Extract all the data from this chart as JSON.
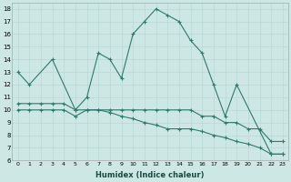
{
  "xlabel": "Humidex (Indice chaleur)",
  "bg_color": "#cde8e4",
  "grid_color": "#b8d8d4",
  "line_color": "#2d7a6e",
  "series1_x": [
    0,
    1,
    3,
    5,
    6,
    7,
    8,
    9,
    10,
    11,
    12,
    13,
    14,
    15,
    16,
    17,
    18,
    19,
    22,
    23
  ],
  "series1_y": [
    13,
    12,
    14,
    10,
    11,
    14.5,
    14,
    12.5,
    16,
    17,
    18,
    17.5,
    17,
    15.5,
    14.5,
    12,
    9.5,
    12,
    6.5,
    6.5
  ],
  "series2_x": [
    0,
    1,
    2,
    3,
    4,
    5,
    6,
    7,
    8,
    9,
    10,
    11,
    12,
    13,
    14,
    15,
    16,
    17,
    18,
    19,
    20,
    21,
    22,
    23
  ],
  "series2_y": [
    10.5,
    10.5,
    10.5,
    10.5,
    10.5,
    10.0,
    10.0,
    10.0,
    9.8,
    9.5,
    9.3,
    9.0,
    8.8,
    8.5,
    8.5,
    8.5,
    8.3,
    8.0,
    7.8,
    7.5,
    7.3,
    7.0,
    6.5,
    6.5
  ],
  "series3_x": [
    0,
    1,
    2,
    3,
    4,
    5,
    6,
    7,
    8,
    9,
    10,
    11,
    12,
    13,
    14,
    15,
    16,
    17,
    18,
    19,
    20,
    21,
    22,
    23
  ],
  "series3_y": [
    10,
    10,
    10,
    10,
    10,
    9.5,
    10,
    10,
    10,
    10,
    10,
    10,
    10,
    10,
    10,
    10,
    9.5,
    9.5,
    9.0,
    9.0,
    8.5,
    8.5,
    7.5,
    7.5
  ],
  "ylim": [
    6,
    18.5
  ],
  "yticks": [
    6,
    7,
    8,
    9,
    10,
    11,
    12,
    13,
    14,
    15,
    16,
    17,
    18
  ],
  "xlim": [
    -0.5,
    23.5
  ],
  "xticks": [
    0,
    1,
    2,
    3,
    4,
    5,
    6,
    7,
    8,
    9,
    10,
    11,
    12,
    13,
    14,
    15,
    16,
    17,
    18,
    19,
    20,
    21,
    22,
    23
  ],
  "xtick_labels": [
    "0",
    "1",
    "2",
    "3",
    "4",
    "5",
    "6",
    "7",
    "8",
    "9",
    "10",
    "11",
    "12",
    "13",
    "14",
    "15",
    "16",
    "17",
    "18",
    "19",
    "20",
    "21",
    "22",
    "23"
  ],
  "linewidth": 0.8,
  "markersize": 3.5
}
